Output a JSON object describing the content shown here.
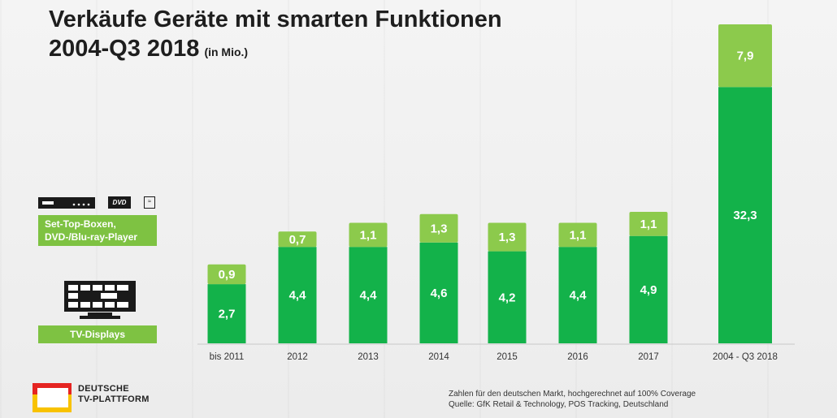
{
  "title_line1": "Verkäufe Geräte mit smarten Funktionen",
  "title_line2": "2004-Q3 2018",
  "title_unit": "(in Mio.)",
  "legend": {
    "stb": {
      "label_line1": "Set-Top-Boxen,",
      "label_line2": "DVD-/Blu-ray-Player",
      "icon_text": "DVD"
    },
    "tv": {
      "label": "TV-Displays"
    }
  },
  "source_line1": "Zahlen für den deutschen Markt, hochgerechnet auf 100% Coverage",
  "source_line2": "Quelle: GfK Retail & Technology, POS Tracking, Deutschland",
  "logo_line1": "DEUTSCHE",
  "logo_line2": "TV-PLATTFORM",
  "colors": {
    "stb": "#8cca4c",
    "tv": "#13b24a",
    "logo_red": "#e52421",
    "logo_yellow": "#f8c200"
  },
  "chart_data": {
    "type": "bar",
    "stacked": true,
    "categories": [
      "bis 2011",
      "2012",
      "2013",
      "2014",
      "2015",
      "2016",
      "2017",
      "2004 - Q3 2018"
    ],
    "series": [
      {
        "name": "TV-Displays",
        "values": [
          2.7,
          4.4,
          4.4,
          4.6,
          4.2,
          4.4,
          4.9,
          32.3
        ],
        "labels": [
          "2,7",
          "4,4",
          "4,4",
          "4,6",
          "4,2",
          "4,4",
          "4,9",
          "32,3"
        ]
      },
      {
        "name": "Set-Top-Boxen, DVD-/Blu-ray-Player",
        "values": [
          0.9,
          0.7,
          1.1,
          1.3,
          1.3,
          1.1,
          1.1,
          7.9
        ],
        "labels": [
          "0,9",
          "0,7",
          "1,1",
          "1,3",
          "1,3",
          "1,1",
          "1,1",
          "7,9"
        ]
      }
    ],
    "broken_axis_for_last_category": true,
    "gridlines": false,
    "legend_position": "left"
  }
}
